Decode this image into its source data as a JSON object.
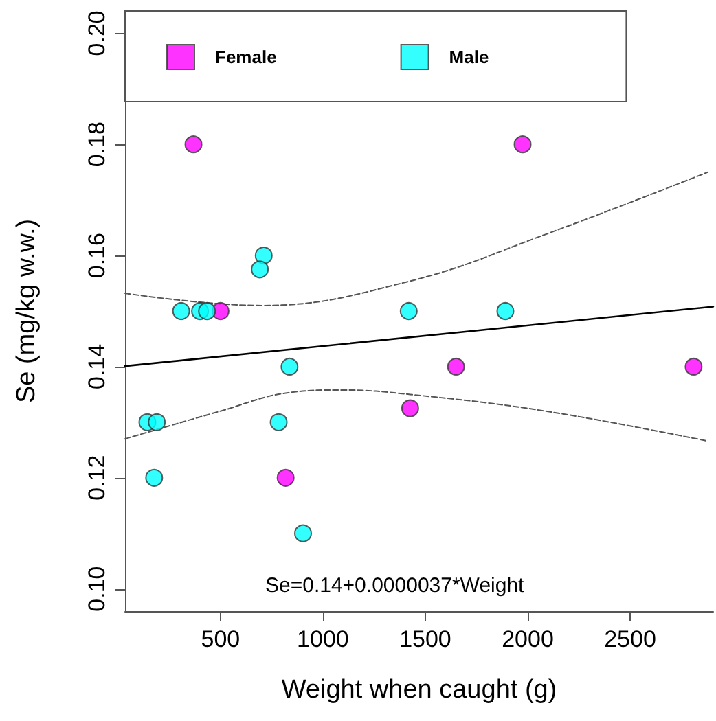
{
  "chart_data": {
    "type": "scatter",
    "xlabel": "Weight when caught (g)",
    "ylabel": "Se (mg/kg w.w.)",
    "annotations": [
      "Se=0.14+0.0000037*Weight"
    ],
    "xlim": [
      34,
      2906
    ],
    "ylim": [
      0.096,
      0.204
    ],
    "xticks": [
      500,
      1000,
      1500,
      2000,
      2500
    ],
    "yticks": [
      {
        "value": 0.1,
        "label": "0.10"
      },
      {
        "value": 0.12,
        "label": "0.12"
      },
      {
        "value": 0.14,
        "label": "0.14"
      },
      {
        "value": 0.16,
        "label": "0.16"
      },
      {
        "value": 0.18,
        "label": "0.18"
      },
      {
        "value": 0.2,
        "label": "0.20"
      }
    ],
    "grid": false,
    "legend": "top left",
    "marker": "circle",
    "series": [
      {
        "name": "Female",
        "color": "#ff00ff",
        "x": [
          368,
          1975,
          500,
          818,
          1650,
          2810,
          1426
        ],
        "values": [
          0.18,
          0.18,
          0.15,
          0.12,
          0.14,
          0.14,
          0.1325
        ]
      },
      {
        "name": "Male",
        "color": "#00ffff",
        "x": [
          308,
          400,
          434,
          711,
          692,
          143,
          189,
          176,
          837,
          784,
          903,
          1419,
          1891
        ],
        "values": [
          0.15,
          0.15,
          0.15,
          0.16,
          0.1575,
          0.13,
          0.13,
          0.12,
          0.14,
          0.13,
          0.11,
          0.15,
          0.15
        ]
      },
      {
        "type": "line",
        "color": "#000000",
        "line_style": "solid",
        "marker": "none",
        "x": [
          34,
          2906
        ],
        "values": [
          0.1401,
          0.1508
        ]
      },
      {
        "type": "line",
        "color": "#555555",
        "line_style": "dashed",
        "marker": "none",
        "x": [
          34,
          700,
          1426,
          2087,
          2880
        ],
        "values": [
          0.1532,
          0.151,
          0.1554,
          0.1638,
          0.175
        ]
      },
      {
        "type": "line",
        "color": "#555555",
        "line_style": "dashed",
        "marker": "none",
        "x": [
          34,
          500,
          830,
          1095,
          1426,
          2087,
          2880
        ],
        "values": [
          0.127,
          0.132,
          0.1353,
          0.1358,
          0.135,
          0.132,
          0.1266
        ]
      }
    ]
  }
}
